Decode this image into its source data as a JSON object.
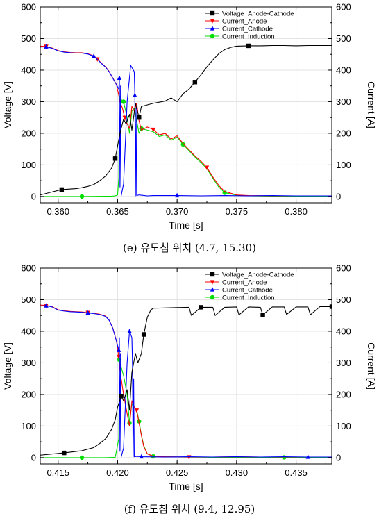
{
  "colors": {
    "voltage": "#000000",
    "anode": "#ff0000",
    "cathode": "#0000ff",
    "induction": "#00dd00"
  },
  "legend_labels": [
    "Voltage_Anode-Cathode",
    "Current_Anode",
    "Current_Cathode",
    "Current_Induction"
  ],
  "chart_data": [
    {
      "type": "line",
      "caption": "(e) 유도침 위치 (4.7, 15.30)",
      "xlabel": "Time [s]",
      "ylabel_left": "Voltage [V]",
      "ylabel_right": "Current [A]",
      "xlim": [
        0.3585,
        0.383
      ],
      "ylim": [
        -20,
        600
      ],
      "ylim_right": [
        -20,
        600
      ],
      "x_ticks": [
        "0.360",
        "0.365",
        "0.370",
        "0.375",
        "0.380"
      ],
      "y_ticks": [
        "0",
        "100",
        "200",
        "300",
        "400",
        "500",
        "600"
      ],
      "grid": true,
      "legend_position": "top-right",
      "series": [
        {
          "name": "Voltage_Anode-Cathode",
          "x": [
            0.3585,
            0.3603,
            0.3615,
            0.362,
            0.3625,
            0.363,
            0.3635,
            0.364,
            0.3645,
            0.3648,
            0.365,
            0.3652,
            0.3655,
            0.3657,
            0.366,
            0.3662,
            0.3665,
            0.3668,
            0.367,
            0.368,
            0.369,
            0.3695,
            0.37,
            0.3705,
            0.371,
            0.3715,
            0.372,
            0.3725,
            0.373,
            0.3735,
            0.374,
            0.3745,
            0.375,
            0.376,
            0.377,
            0.378,
            0.379,
            0.38,
            0.381,
            0.382,
            0.383
          ],
          "y": [
            5,
            22,
            25,
            28,
            32,
            38,
            50,
            65,
            90,
            120,
            160,
            200,
            245,
            230,
            260,
            210,
            295,
            250,
            285,
            295,
            302,
            312,
            300,
            325,
            340,
            362,
            385,
            410,
            432,
            452,
            465,
            472,
            476,
            477,
            477,
            478,
            478,
            477,
            478,
            478,
            478
          ]
        },
        {
          "name": "Current_Anode",
          "x": [
            0.3585,
            0.359,
            0.3595,
            0.36,
            0.3605,
            0.361,
            0.3615,
            0.362,
            0.3625,
            0.363,
            0.3633,
            0.3637,
            0.364,
            0.3643,
            0.3646,
            0.3649,
            0.3651,
            0.3652,
            0.3654,
            0.3656,
            0.3658,
            0.366,
            0.3662,
            0.3664,
            0.3666,
            0.3668,
            0.367,
            0.3675,
            0.368,
            0.3685,
            0.369,
            0.3695,
            0.37,
            0.3705,
            0.371,
            0.3715,
            0.372,
            0.3725,
            0.373,
            0.3735,
            0.374,
            0.375,
            0.376,
            0.378,
            0.38,
            0.383
          ],
          "y": [
            476,
            475,
            470,
            462,
            458,
            456,
            455,
            455,
            452,
            445,
            435,
            420,
            410,
            395,
            375,
            355,
            320,
            300,
            280,
            250,
            230,
            215,
            285,
            270,
            295,
            240,
            210,
            220,
            212,
            195,
            200,
            182,
            192,
            168,
            148,
            128,
            112,
            92,
            62,
            35,
            16,
            5,
            3,
            2,
            2,
            2
          ]
        },
        {
          "name": "Current_Cathode",
          "x": [
            0.3585,
            0.359,
            0.3595,
            0.36,
            0.3605,
            0.361,
            0.3615,
            0.362,
            0.3625,
            0.363,
            0.3633,
            0.3637,
            0.364,
            0.3643,
            0.3646,
            0.3649,
            0.3651,
            0.36515,
            0.3652,
            0.36525,
            0.3653,
            0.3655,
            0.3658,
            0.3661,
            0.3664,
            0.36645,
            0.3665,
            0.36655,
            0.3666,
            0.3668,
            0.367,
            0.3675,
            0.368,
            0.37,
            0.372,
            0.374,
            0.376,
            0.378,
            0.38,
            0.383
          ],
          "y": [
            473,
            474,
            469,
            461,
            457,
            455,
            454,
            454,
            451,
            444,
            434,
            419,
            409,
            394,
            374,
            354,
            340,
            375,
            30,
            350,
            2,
            40,
            300,
            415,
            395,
            320,
            2,
            280,
            3,
            5,
            4,
            2,
            3,
            3,
            2,
            3,
            2,
            3,
            2,
            2
          ]
        },
        {
          "name": "Current_Induction",
          "x": [
            0.3585,
            0.362,
            0.3645,
            0.3648,
            0.365,
            0.3651,
            0.36515,
            0.3652,
            0.3655,
            0.3658,
            0.366,
            0.3662,
            0.3664,
            0.3666,
            0.3668,
            0.367,
            0.3675,
            0.368,
            0.3685,
            0.369,
            0.3695,
            0.37,
            0.3705,
            0.371,
            0.3715,
            0.372,
            0.3725,
            0.373,
            0.3735,
            0.374,
            0.375,
            0.376,
            0.378,
            0.38,
            0.383
          ],
          "y": [
            0,
            0,
            1,
            2,
            5,
            60,
            320,
            310,
            300,
            250,
            200,
            270,
            280,
            240,
            200,
            215,
            210,
            205,
            190,
            195,
            178,
            188,
            165,
            145,
            125,
            108,
            88,
            58,
            30,
            12,
            4,
            2,
            1,
            1,
            1
          ]
        }
      ]
    },
    {
      "type": "line",
      "caption": "(f) 유도침 위치 (9.4, 12.95)",
      "xlabel": "Time [s]",
      "ylabel_left": "Voltage [V]",
      "ylabel_right": "Current [A]",
      "xlim": [
        0.4135,
        0.438
      ],
      "ylim": [
        -20,
        600
      ],
      "ylim_right": [
        -20,
        600
      ],
      "x_ticks": [
        "0.415",
        "0.420",
        "0.425",
        "0.430",
        "0.435"
      ],
      "y_ticks": [
        "0",
        "100",
        "200",
        "300",
        "400",
        "500",
        "600"
      ],
      "grid": true,
      "legend_position": "top-right",
      "series": [
        {
          "name": "Voltage_Anode-Cathode",
          "x": [
            0.4135,
            0.4155,
            0.417,
            0.418,
            0.4185,
            0.419,
            0.4195,
            0.4198,
            0.42,
            0.4203,
            0.4205,
            0.4208,
            0.421,
            0.4212,
            0.4215,
            0.4217,
            0.422,
            0.4222,
            0.4225,
            0.4228,
            0.423,
            0.424,
            0.425,
            0.426,
            0.4262,
            0.427,
            0.428,
            0.4282,
            0.429,
            0.43,
            0.4302,
            0.431,
            0.432,
            0.4322,
            0.433,
            0.434,
            0.4342,
            0.435,
            0.436,
            0.4362,
            0.437,
            0.438
          ],
          "y": [
            8,
            15,
            22,
            32,
            45,
            60,
            90,
            120,
            160,
            195,
            180,
            215,
            150,
            270,
            330,
            300,
            330,
            390,
            445,
            468,
            473,
            474,
            475,
            476,
            450,
            476,
            476,
            450,
            476,
            477,
            452,
            477,
            476,
            452,
            477,
            477,
            453,
            477,
            477,
            452,
            478,
            478
          ]
        },
        {
          "name": "Current_Anode",
          "x": [
            0.4135,
            0.414,
            0.4145,
            0.415,
            0.4155,
            0.416,
            0.4165,
            0.417,
            0.4175,
            0.418,
            0.4185,
            0.419,
            0.4193,
            0.4196,
            0.4199,
            0.4201,
            0.4203,
            0.4205,
            0.4208,
            0.421,
            0.4212,
            0.4214,
            0.4216,
            0.4218,
            0.422,
            0.4222,
            0.4225,
            0.423,
            0.424,
            0.426,
            0.428,
            0.43,
            0.432,
            0.434,
            0.436,
            0.438
          ],
          "y": [
            483,
            482,
            478,
            468,
            465,
            463,
            462,
            461,
            459,
            457,
            454,
            448,
            435,
            410,
            370,
            320,
            250,
            200,
            140,
            100,
            180,
            160,
            150,
            110,
            70,
            35,
            12,
            5,
            3,
            2,
            2,
            3,
            2,
            2,
            2,
            2
          ]
        },
        {
          "name": "Current_Cathode",
          "x": [
            0.4135,
            0.414,
            0.4145,
            0.415,
            0.4155,
            0.416,
            0.4165,
            0.417,
            0.4175,
            0.418,
            0.4185,
            0.419,
            0.4193,
            0.4196,
            0.4199,
            0.4201,
            0.42015,
            0.4202,
            0.42025,
            0.4203,
            0.4205,
            0.4208,
            0.421,
            0.4212,
            0.42125,
            0.4213,
            0.42135,
            0.4214,
            0.4216,
            0.422,
            0.424,
            0.426,
            0.428,
            0.43,
            0.432,
            0.434,
            0.436,
            0.438
          ],
          "y": [
            480,
            481,
            477,
            467,
            464,
            462,
            461,
            460,
            458,
            456,
            453,
            447,
            434,
            409,
            369,
            340,
            380,
            20,
            330,
            2,
            30,
            300,
            400,
            380,
            300,
            2,
            250,
            3,
            4,
            3,
            2,
            3,
            2,
            3,
            2,
            3,
            2,
            2
          ]
        },
        {
          "name": "Current_Induction",
          "x": [
            0.4135,
            0.417,
            0.419,
            0.4198,
            0.4201,
            0.42015,
            0.4202,
            0.4205,
            0.4208,
            0.421,
            0.4212,
            0.4214,
            0.4216,
            0.4218,
            0.422,
            0.4222,
            0.4225,
            0.423,
            0.425,
            0.428,
            0.431,
            0.434,
            0.438
          ],
          "y": [
            0,
            0,
            0,
            1,
            60,
            310,
            300,
            260,
            200,
            110,
            170,
            160,
            152,
            115,
            72,
            38,
            12,
            4,
            2,
            1,
            1,
            1,
            1
          ]
        }
      ]
    }
  ]
}
